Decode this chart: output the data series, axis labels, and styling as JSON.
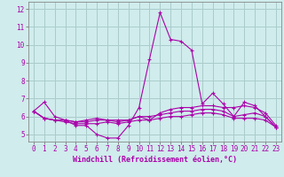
{
  "xlabel": "Windchill (Refroidissement éolien,°C)",
  "background_color": "#d0ecec",
  "grid_color": "#aacccc",
  "line_color": "#aa00aa",
  "x_ticks": [
    0,
    1,
    2,
    3,
    4,
    5,
    6,
    7,
    8,
    9,
    10,
    11,
    12,
    13,
    14,
    15,
    16,
    17,
    18,
    19,
    20,
    21,
    22,
    23
  ],
  "y_ticks": [
    5,
    6,
    7,
    8,
    9,
    10,
    11,
    12
  ],
  "ylim": [
    4.6,
    12.4
  ],
  "xlim": [
    -0.5,
    23.5
  ],
  "series": [
    {
      "x": [
        0,
        1,
        2,
        3,
        4,
        5,
        6,
        7,
        8,
        9,
        10,
        11,
        12,
        13,
        14,
        15,
        16,
        17,
        18,
        19,
        20,
        21,
        22,
        23
      ],
      "y": [
        6.3,
        6.8,
        6.0,
        5.8,
        5.5,
        5.5,
        5.0,
        4.8,
        4.8,
        5.5,
        6.5,
        9.2,
        11.8,
        10.3,
        10.2,
        9.7,
        6.7,
        7.3,
        6.7,
        6.0,
        6.8,
        6.6,
        6.0,
        5.4
      ]
    },
    {
      "x": [
        0,
        1,
        2,
        3,
        4,
        5,
        6,
        7,
        8,
        9,
        10,
        11,
        12,
        13,
        14,
        15,
        16,
        17,
        18,
        19,
        20,
        21,
        22,
        23
      ],
      "y": [
        6.3,
        5.9,
        5.8,
        5.8,
        5.7,
        5.8,
        5.9,
        5.8,
        5.8,
        5.8,
        6.0,
        5.8,
        6.2,
        6.4,
        6.5,
        6.5,
        6.6,
        6.6,
        6.5,
        6.5,
        6.6,
        6.5,
        6.2,
        5.5
      ]
    },
    {
      "x": [
        0,
        1,
        2,
        3,
        4,
        5,
        6,
        7,
        8,
        9,
        10,
        11,
        12,
        13,
        14,
        15,
        16,
        17,
        18,
        19,
        20,
        21,
        22,
        23
      ],
      "y": [
        6.3,
        5.9,
        5.8,
        5.8,
        5.7,
        5.7,
        5.8,
        5.8,
        5.7,
        5.8,
        6.0,
        6.0,
        6.1,
        6.2,
        6.3,
        6.3,
        6.4,
        6.4,
        6.3,
        6.0,
        6.1,
        6.2,
        6.0,
        5.4
      ]
    },
    {
      "x": [
        0,
        1,
        2,
        3,
        4,
        5,
        6,
        7,
        8,
        9,
        10,
        11,
        12,
        13,
        14,
        15,
        16,
        17,
        18,
        19,
        20,
        21,
        22,
        23
      ],
      "y": [
        6.3,
        5.9,
        5.8,
        5.7,
        5.6,
        5.6,
        5.6,
        5.7,
        5.6,
        5.7,
        5.8,
        5.8,
        5.9,
        6.0,
        6.0,
        6.1,
        6.2,
        6.2,
        6.1,
        5.9,
        5.9,
        5.9,
        5.8,
        5.4
      ]
    }
  ]
}
